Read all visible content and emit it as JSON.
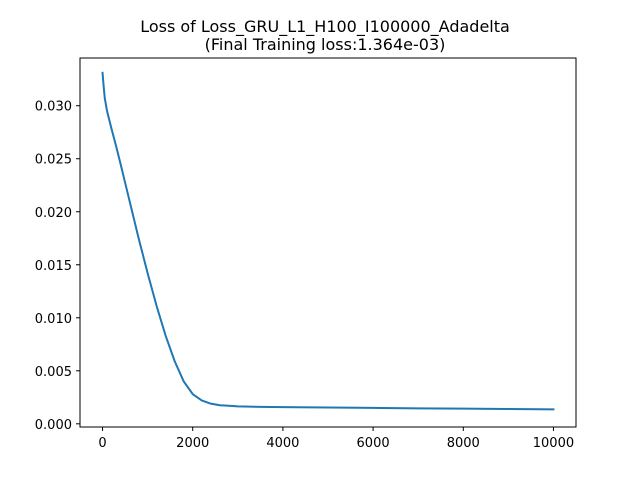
{
  "chart_data": {
    "type": "line",
    "title": "Loss of Loss_GRU_L1_H100_I100000_Adadelta",
    "subtitle": "(Final Training loss:1.364e-03)",
    "xlabel": "",
    "ylabel": "",
    "xlim": [
      -500,
      10500
    ],
    "ylim": [
      -0.0003,
      0.0345
    ],
    "xticks": [
      0,
      2000,
      4000,
      6000,
      8000,
      10000
    ],
    "xtick_labels": [
      "0",
      "2000",
      "4000",
      "6000",
      "8000",
      "10000"
    ],
    "yticks": [
      0.0,
      0.005,
      0.01,
      0.015,
      0.02,
      0.025,
      0.03
    ],
    "ytick_labels": [
      "0.000",
      "0.005",
      "0.010",
      "0.015",
      "0.020",
      "0.025",
      "0.030"
    ],
    "grid": false,
    "color": "#1f77b4",
    "series": [
      {
        "x": [
          0,
          25,
          50,
          100,
          200,
          300,
          400,
          600,
          800,
          1000,
          1200,
          1400,
          1600,
          1800,
          2000,
          2200,
          2400,
          2600,
          2800,
          3000,
          3500,
          4000,
          5000,
          6000,
          7000,
          8000,
          9000,
          10000
        ],
        "y": [
          0.0331,
          0.0318,
          0.0307,
          0.0295,
          0.0278,
          0.0262,
          0.0245,
          0.021,
          0.0175,
          0.0142,
          0.0111,
          0.0083,
          0.0059,
          0.004,
          0.0028,
          0.0022,
          0.0019,
          0.00175,
          0.0017,
          0.00165,
          0.0016,
          0.00158,
          0.00154,
          0.0015,
          0.00146,
          0.00143,
          0.0014,
          0.001364
        ]
      }
    ]
  }
}
